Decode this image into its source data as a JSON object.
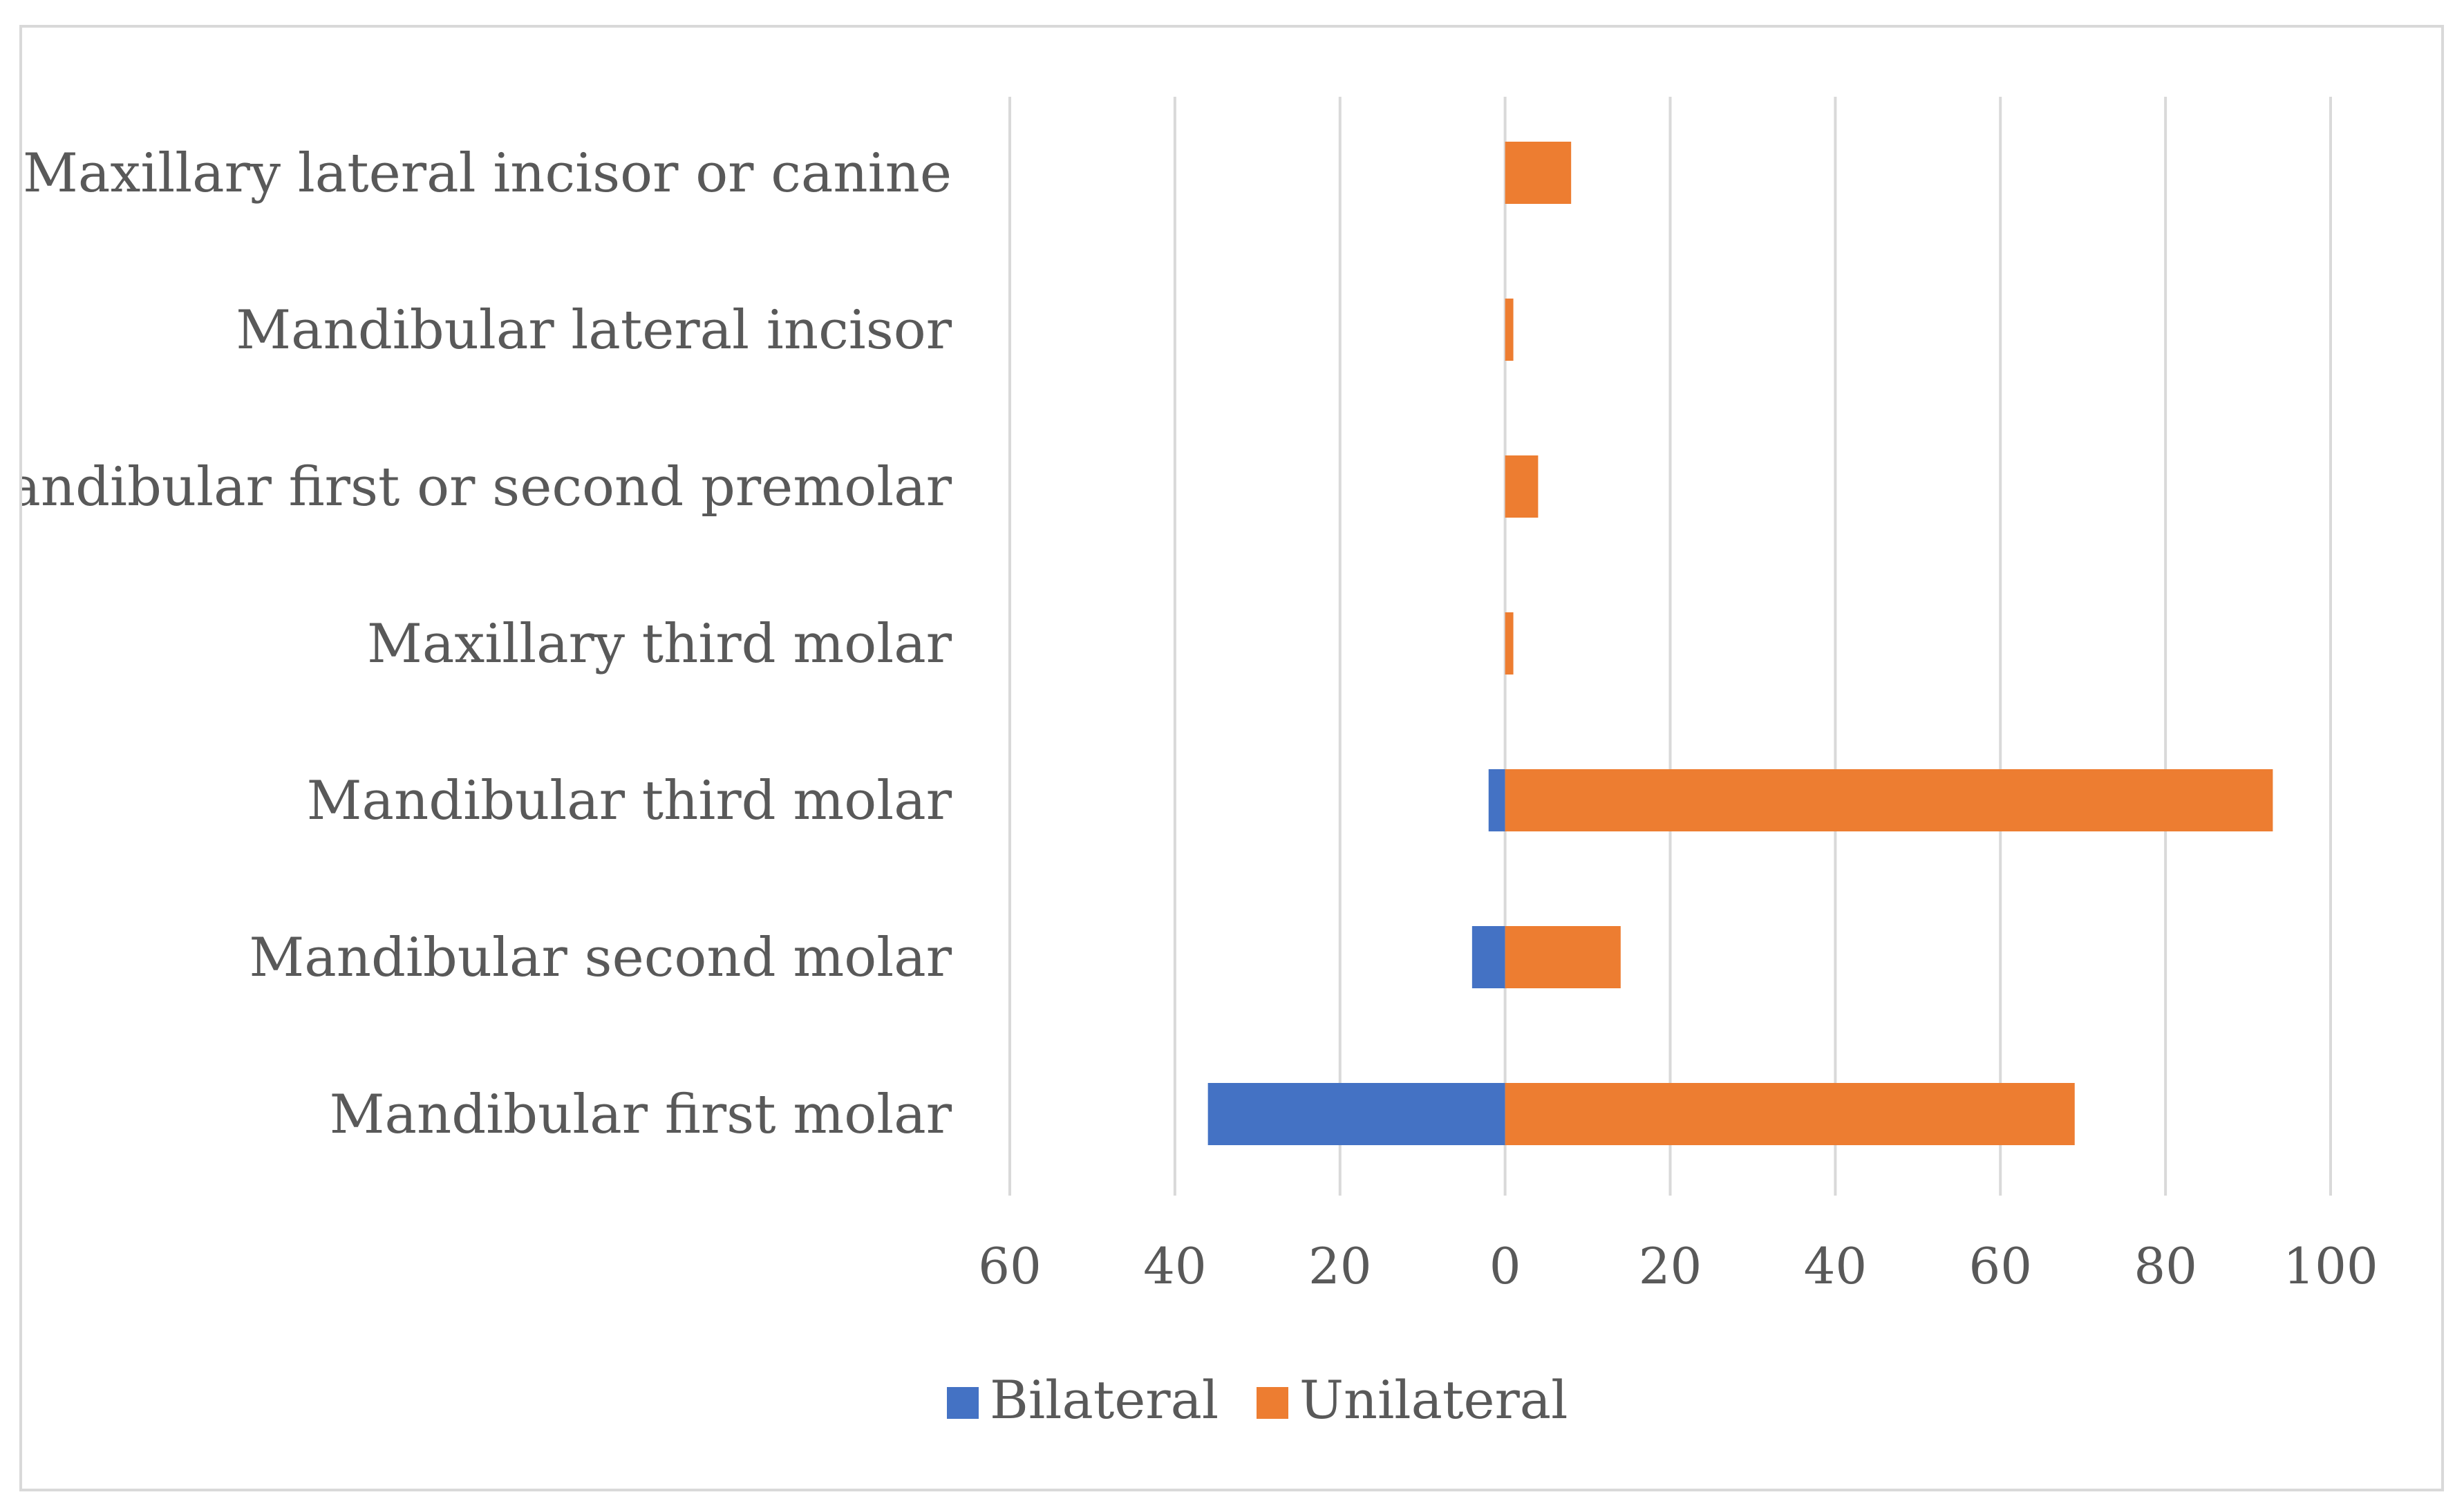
{
  "chart_data": {
    "type": "bar",
    "orientation": "horizontal",
    "stacked": true,
    "title": "",
    "xlabel": "",
    "ylabel": "",
    "categories": [
      "Maxillary lateral incisor or canine",
      "Mandibular lateral incisor",
      "Mandibular first or second premolar",
      "Maxillary third molar",
      "Mandibular third molar",
      "Mandibular second molar",
      "Mandibular first molar"
    ],
    "series": [
      {
        "name": "Bilateral",
        "color": "#4472c4",
        "values": [
          0,
          0,
          0,
          0,
          -2,
          -4,
          -36
        ]
      },
      {
        "name": "Unilateral",
        "color": "#ed7d31",
        "values": [
          8,
          1,
          4,
          1,
          93,
          14,
          69
        ]
      }
    ],
    "xlim": [
      -60,
      100
    ],
    "x_ticks": [
      -60,
      -40,
      -20,
      0,
      20,
      40,
      60,
      80,
      100
    ],
    "x_tick_labels": [
      "60",
      "40",
      "20",
      "0",
      "20",
      "40",
      "60",
      "80",
      "100"
    ],
    "grid": true,
    "legend_position": "bottom"
  }
}
